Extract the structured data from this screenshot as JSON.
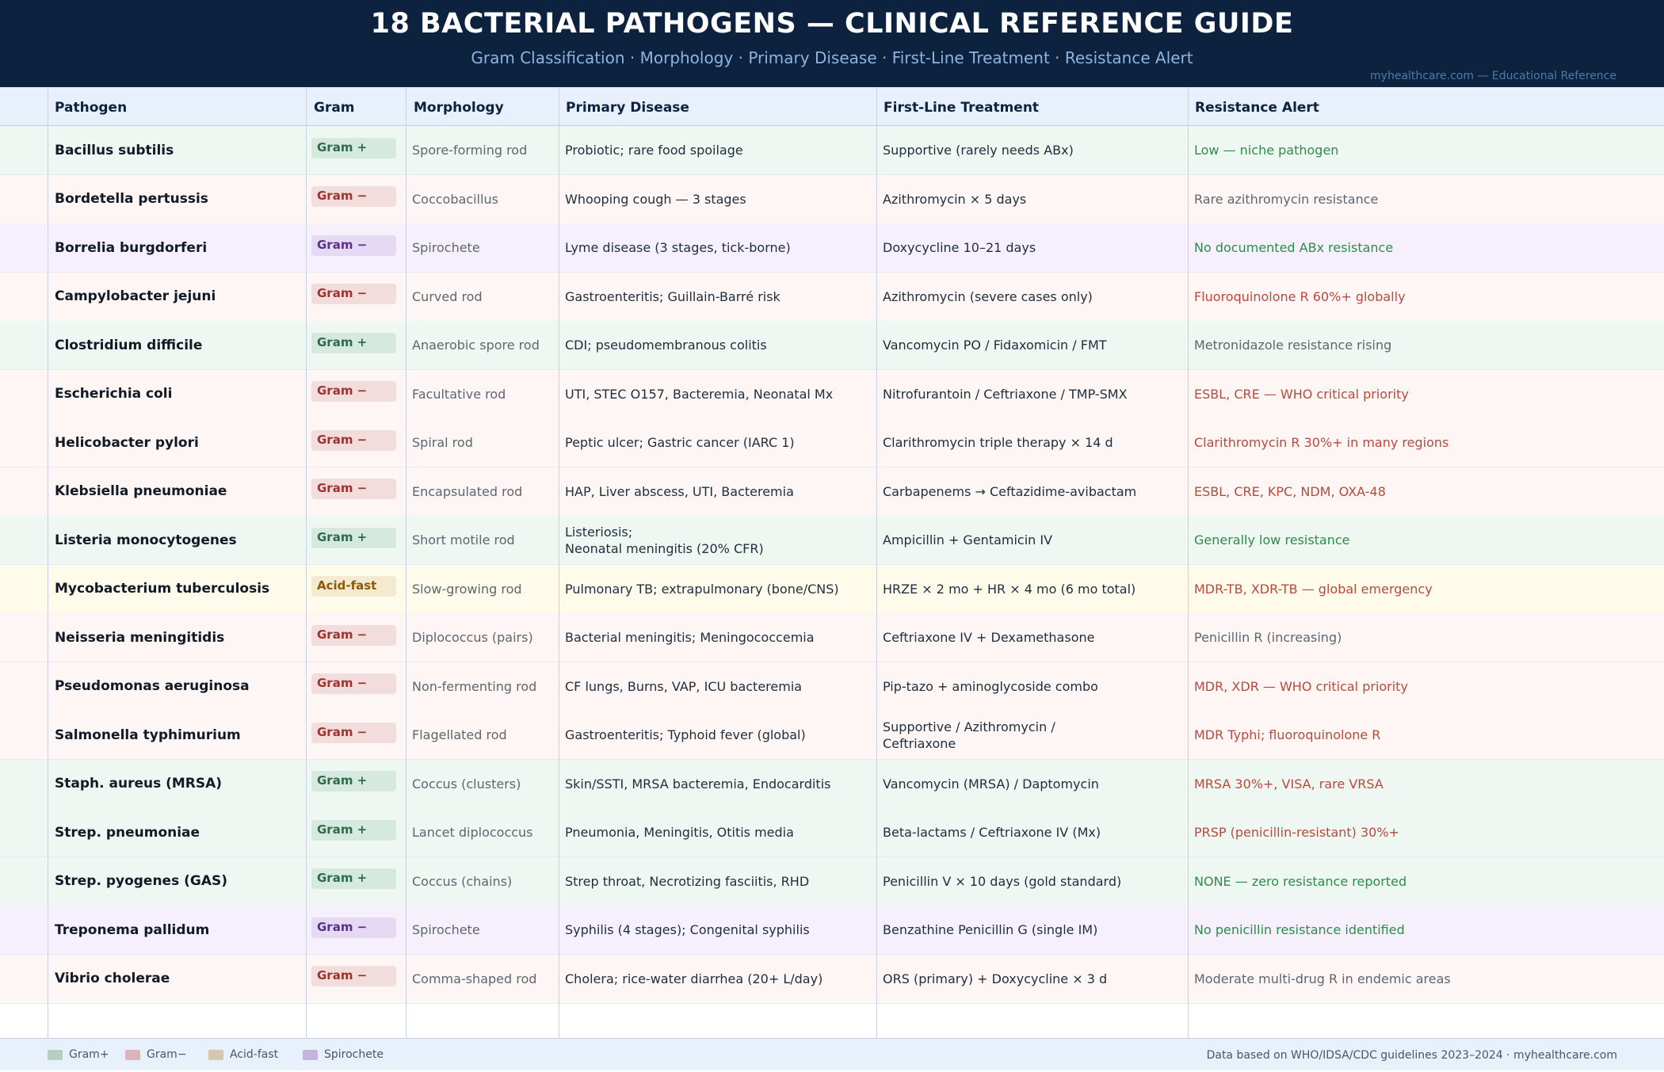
{
  "header": {
    "title": "18 BACTERIAL PATHOGENS — CLINICAL REFERENCE GUIDE",
    "subtitle": "Gram Classification · Morphology · Primary Disease · First-Line Treatment · Resistance Alert",
    "site": "myhealthcare.com — Educational Reference"
  },
  "columns": [
    "Pathogen",
    "Gram",
    "Morphology",
    "Primary Disease",
    "First-Line Treatment",
    "Resistance Alert"
  ],
  "colors": {
    "header_bg": "#0c223f",
    "gram_pos_row": "#eef7f1",
    "gram_pos_badge_bg": "#d6e9de",
    "gram_pos_text": "#2e6b4d",
    "gram_neg_row": "#fdf6f5",
    "gram_neg_badge_bg": "#f3dcdc",
    "gram_neg_text": "#a0332e",
    "spiro_row": "#f6f0fd",
    "spiro_badge_bg": "#e5d9f3",
    "spiro_text": "#5b2f8c",
    "acid_row": "#fffbea",
    "acid_badge_bg": "#f4ead0",
    "acid_text": "#8a5a0a",
    "alert_red": "#b84a3c",
    "alert_green": "#2e8b4a",
    "alert_gray": "#5e6670"
  },
  "rows": [
    {
      "pathogen": "Bacillus subtilis",
      "gram": "Gram +",
      "gram_type": "pos",
      "morphology": "Spore-forming rod",
      "disease": "Probiotic; rare food spoilage",
      "treatment": "Supportive (rarely needs ABx)",
      "resistance": "Low — niche pathogen",
      "alert": "green"
    },
    {
      "pathogen": "Bordetella pertussis",
      "gram": "Gram −",
      "gram_type": "neg",
      "morphology": "Coccobacillus",
      "disease": "Whooping cough — 3 stages",
      "treatment": "Azithromycin × 5 days",
      "resistance": "Rare azithromycin resistance",
      "alert": "gray"
    },
    {
      "pathogen": "Borrelia burgdorferi",
      "gram": "Gram −",
      "gram_type": "spiro",
      "morphology": "Spirochete",
      "disease": "Lyme disease (3 stages, tick-borne)",
      "treatment": "Doxycycline 10–21 days",
      "resistance": "No documented ABx resistance",
      "alert": "green"
    },
    {
      "pathogen": "Campylobacter jejuni",
      "gram": "Gram −",
      "gram_type": "neg",
      "morphology": "Curved rod",
      "disease": "Gastroenteritis; Guillain-Barré risk",
      "treatment": "Azithromycin (severe cases only)",
      "resistance": "Fluoroquinolone R 60%+ globally",
      "alert": "red"
    },
    {
      "pathogen": "Clostridium difficile",
      "gram": "Gram +",
      "gram_type": "pos",
      "morphology": "Anaerobic spore rod",
      "disease": "CDI; pseudomembranous colitis",
      "treatment": "Vancomycin PO / Fidaxomicin / FMT",
      "resistance": "Metronidazole resistance rising",
      "alert": "gray"
    },
    {
      "pathogen": "Escherichia coli",
      "gram": "Gram −",
      "gram_type": "neg",
      "morphology": "Facultative rod",
      "disease": "UTI, STEC O157, Bacteremia, Neonatal Mx",
      "treatment": "Nitrofurantoin / Ceftriaxone / TMP-SMX",
      "resistance": "ESBL, CRE — WHO critical priority",
      "alert": "red"
    },
    {
      "pathogen": "Helicobacter pylori",
      "gram": "Gram −",
      "gram_type": "neg",
      "morphology": "Spiral rod",
      "disease": "Peptic ulcer; Gastric cancer (IARC 1)",
      "treatment": "Clarithromycin triple therapy × 14 d",
      "resistance": "Clarithromycin R 30%+ in many regions",
      "alert": "red"
    },
    {
      "pathogen": "Klebsiella pneumoniae",
      "gram": "Gram −",
      "gram_type": "neg",
      "morphology": "Encapsulated rod",
      "disease": "HAP, Liver abscess, UTI, Bacteremia",
      "treatment": "Carbapenems → Ceftazidime-avibactam",
      "resistance": "ESBL, CRE, KPC, NDM, OXA-48",
      "alert": "red"
    },
    {
      "pathogen": "Listeria monocytogenes",
      "gram": "Gram +",
      "gram_type": "pos",
      "morphology": "Short motile rod",
      "disease": "Listeriosis;\nNeonatal meningitis (20% CFR)",
      "treatment": "Ampicillin + Gentamicin IV",
      "resistance": "Generally low resistance",
      "alert": "green"
    },
    {
      "pathogen": "Mycobacterium tuberculosis",
      "gram": "Acid-fast",
      "gram_type": "acid",
      "morphology": "Slow-growing rod",
      "disease": "Pulmonary TB; extrapulmonary (bone/CNS)",
      "treatment": "HRZE × 2 mo + HR × 4 mo (6 mo total)",
      "resistance": "MDR-TB, XDR-TB — global emergency",
      "alert": "red"
    },
    {
      "pathogen": "Neisseria meningitidis",
      "gram": "Gram −",
      "gram_type": "neg",
      "morphology": "Diplococcus (pairs)",
      "disease": "Bacterial meningitis; Meningococcemia",
      "treatment": "Ceftriaxone IV + Dexamethasone",
      "resistance": "Penicillin R (increasing)",
      "alert": "gray"
    },
    {
      "pathogen": "Pseudomonas aeruginosa",
      "gram": "Gram −",
      "gram_type": "neg",
      "morphology": "Non-fermenting rod",
      "disease": "CF lungs, Burns, VAP, ICU bacteremia",
      "treatment": "Pip-tazo + aminoglycoside combo",
      "resistance": "MDR, XDR — WHO critical priority",
      "alert": "red"
    },
    {
      "pathogen": "Salmonella typhimurium",
      "gram": "Gram −",
      "gram_type": "neg",
      "morphology": "Flagellated rod",
      "disease": "Gastroenteritis; Typhoid fever (global)",
      "treatment": "Supportive / Azithromycin /\nCeftriaxone",
      "resistance": "MDR Typhi; fluoroquinolone R",
      "alert": "red"
    },
    {
      "pathogen": "Staph. aureus (MRSA)",
      "gram": "Gram +",
      "gram_type": "pos",
      "morphology": "Coccus (clusters)",
      "disease": "Skin/SSTI, MRSA bacteremia, Endocarditis",
      "treatment": "Vancomycin (MRSA) / Daptomycin",
      "resistance": "MRSA 30%+, VISA, rare VRSA",
      "alert": "red"
    },
    {
      "pathogen": "Strep. pneumoniae",
      "gram": "Gram +",
      "gram_type": "pos",
      "morphology": "Lancet diplococcus",
      "disease": "Pneumonia, Meningitis, Otitis media",
      "treatment": "Beta-lactams / Ceftriaxone IV (Mx)",
      "resistance": "PRSP (penicillin-resistant) 30%+",
      "alert": "red"
    },
    {
      "pathogen": "Strep. pyogenes (GAS)",
      "gram": "Gram +",
      "gram_type": "pos",
      "morphology": "Coccus (chains)",
      "disease": "Strep throat, Necrotizing fasciitis, RHD",
      "treatment": "Penicillin V × 10 days (gold standard)",
      "resistance": "NONE — zero resistance reported",
      "alert": "green"
    },
    {
      "pathogen": "Treponema pallidum",
      "gram": "Gram −",
      "gram_type": "spiro",
      "morphology": "Spirochete",
      "disease": "Syphilis (4 stages); Congenital syphilis",
      "treatment": "Benzathine Penicillin G (single IM)",
      "resistance": "No penicillin resistance identified",
      "alert": "green"
    },
    {
      "pathogen": "Vibrio cholerae",
      "gram": "Gram −",
      "gram_type": "neg",
      "morphology": "Comma-shaped rod",
      "disease": "Cholera; rice-water diarrhea (20+ L/day)",
      "treatment": "ORS (primary) + Doxycycline × 3 d",
      "resistance": "Moderate multi-drug R in endemic areas",
      "alert": "gray"
    }
  ],
  "legend": [
    {
      "label": "Gram+",
      "color": "#b5cfc4"
    },
    {
      "label": "Gram−",
      "color": "#dcb3b6"
    },
    {
      "label": "Acid-fast",
      "color": "#d4c7ad"
    },
    {
      "label": "Spirochete",
      "color": "#c3b5de"
    }
  ],
  "footer_note": "Data based on WHO/IDSA/CDC guidelines 2023–2024 · myhealthcare.com"
}
